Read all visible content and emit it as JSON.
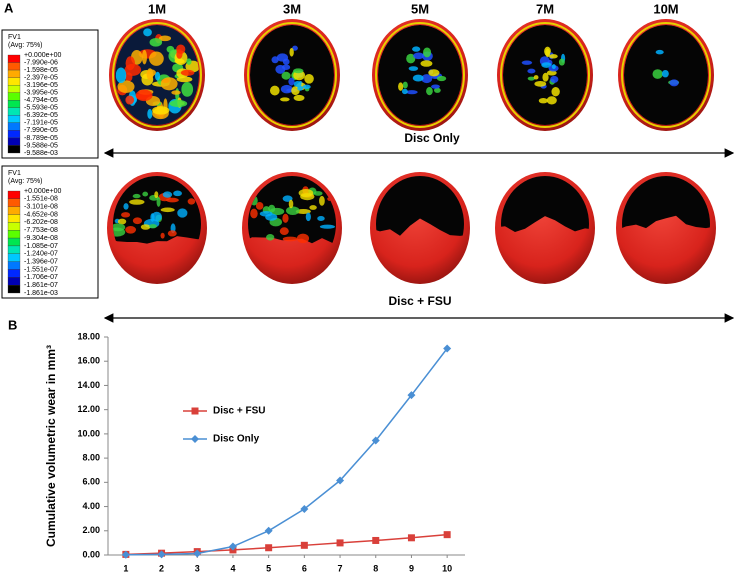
{
  "panel_a": {
    "label": "A",
    "columns": [
      "1M",
      "3M",
      "5M",
      "7M",
      "10M"
    ],
    "rows": [
      {
        "label": "Disc  Only",
        "legend": {
          "title": "FV1",
          "subtitle": "(Avg: 75%)",
          "values": [
            "+0.000e+00",
            "-7.990e-06",
            "-1.598e-05",
            "-2.397e-05",
            "-3.196e-05",
            "-3.995e-05",
            "-4.794e-05",
            "-5.593e-05",
            "-6.392e-05",
            "-7.191e-05",
            "-7.990e-05",
            "-8.789e-05",
            "-9.588e-05",
            "-9.588e-03"
          ]
        }
      },
      {
        "label": "Disc + FSU",
        "legend": {
          "title": "FV1",
          "subtitle": "(Avg: 75%)",
          "values": [
            "+0.000e+00",
            "-1.551e-08",
            "-3.101e-08",
            "-4.652e-08",
            "-6.202e-08",
            "-7.753e-08",
            "-9.304e-08",
            "-1.085e-07",
            "-1.240e-07",
            "-1.396e-07",
            "-1.551e-07",
            "-1.706e-07",
            "-1.861e-07",
            "-1.861e-03"
          ]
        }
      }
    ]
  },
  "panel_b_label": "B",
  "chart_data": {
    "type": "line",
    "y_label": "Cumulative  volumetric  wear in mm³",
    "x": [
      1,
      2,
      3,
      4,
      5,
      6,
      7,
      8,
      9,
      10
    ],
    "xlim": [
      0.5,
      10.5
    ],
    "xticks": [
      1,
      2,
      3,
      4,
      5,
      6,
      7,
      8,
      9,
      10
    ],
    "ylim": [
      0,
      18
    ],
    "yticks": [
      {
        "value": 0,
        "label": "0.00"
      },
      {
        "value": 2,
        "label": "2.00"
      },
      {
        "value": 4,
        "label": "4.00"
      },
      {
        "value": 6,
        "label": "6.00"
      },
      {
        "value": 8,
        "label": "8.00"
      },
      {
        "value": 10,
        "label": "10.00"
      },
      {
        "value": 12,
        "label": "12.00"
      },
      {
        "value": 14,
        "label": "14.00"
      },
      {
        "value": 16,
        "label": "16.00"
      },
      {
        "value": 18,
        "label": "18.00"
      }
    ],
    "series": [
      {
        "name": "Disc + FSU",
        "color": "#d9403a",
        "marker": "square",
        "values": [
          0.05,
          0.15,
          0.28,
          0.42,
          0.6,
          0.8,
          1.0,
          1.2,
          1.42,
          1.68
        ]
      },
      {
        "name": "Disc Only",
        "color": "#4a8fd4",
        "marker": "diamond",
        "values": [
          0.02,
          0.05,
          0.12,
          0.7,
          2.0,
          3.8,
          6.15,
          9.45,
          13.2,
          17.05
        ]
      }
    ],
    "grid": false
  }
}
